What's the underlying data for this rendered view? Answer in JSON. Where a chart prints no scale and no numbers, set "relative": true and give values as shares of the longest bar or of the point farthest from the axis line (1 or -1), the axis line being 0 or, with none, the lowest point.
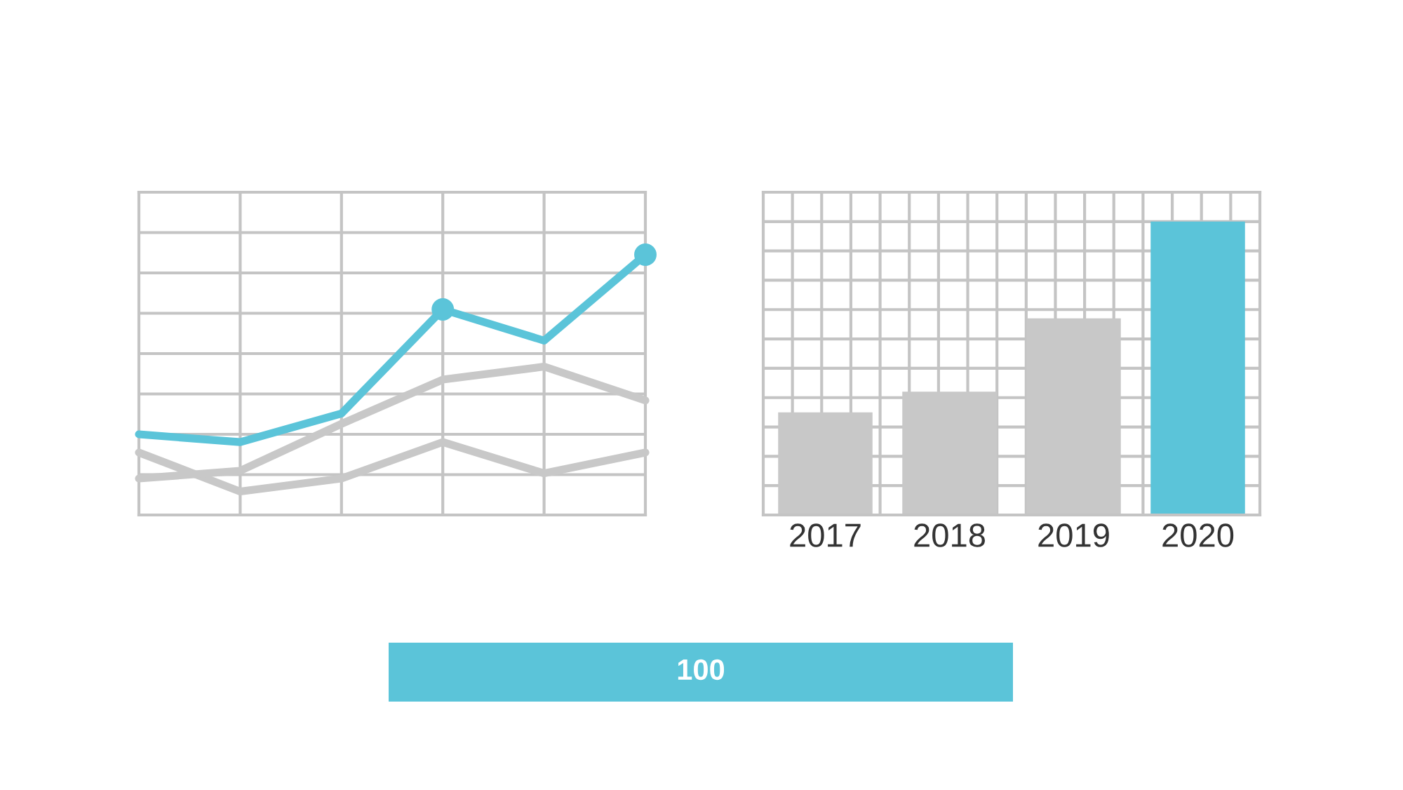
{
  "chart_data": [
    {
      "type": "line",
      "relative": true,
      "categories": [
        null,
        null,
        null,
        null,
        null,
        null
      ],
      "grid": true,
      "line_style": "solid",
      "series": [
        {
          "color": "#c8c8c8",
          "values": [
            0.24,
            0.09,
            0.14,
            0.28,
            0.16,
            0.24
          ]
        },
        {
          "color": "#c8c8c8",
          "values": [
            0.14,
            0.17,
            0.35,
            0.52,
            0.57,
            0.44
          ]
        },
        {
          "color": "#5bc4d9",
          "values": [
            0.31,
            0.28,
            0.39,
            0.79,
            0.67,
            1.0
          ]
        }
      ]
    },
    {
      "type": "bar",
      "relative": true,
      "categories": [
        "2017",
        "2018",
        "2019",
        "2020"
      ],
      "grid": true,
      "values": [
        0.35,
        0.42,
        0.67,
        1.0
      ],
      "colors": [
        "#c8c8c8",
        "#c8c8c8",
        "#c8c8c8",
        "#5bc4d9"
      ]
    },
    {
      "type": "other",
      "color": "#5bc4d9",
      "annotations": [
        "100"
      ]
    }
  ]
}
